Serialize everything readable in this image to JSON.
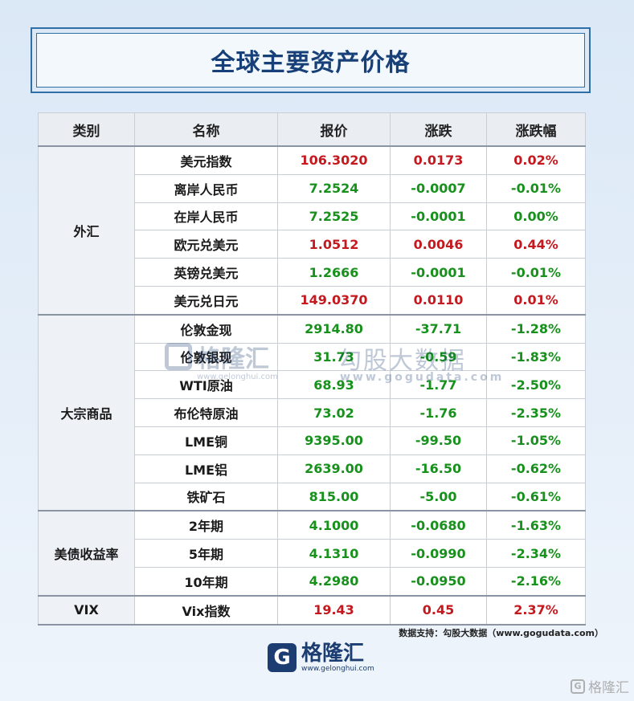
{
  "title": "全球主要资产价格",
  "headers": [
    "类别",
    "名称",
    "报价",
    "涨跌",
    "涨跌幅"
  ],
  "groups": [
    {
      "category": "外汇",
      "rows": [
        {
          "name": "美元指数",
          "price": "106.3020",
          "change": "0.0173",
          "pct": "0.02%",
          "dir": "up"
        },
        {
          "name": "离岸人民币",
          "price": "7.2524",
          "change": "-0.0007",
          "pct": "-0.01%",
          "dir": "down"
        },
        {
          "name": "在岸人民币",
          "price": "7.2525",
          "change": "-0.0001",
          "pct": "0.00%",
          "dir": "down"
        },
        {
          "name": "欧元兑美元",
          "price": "1.0512",
          "change": "0.0046",
          "pct": "0.44%",
          "dir": "up"
        },
        {
          "name": "英镑兑美元",
          "price": "1.2666",
          "change": "-0.0001",
          "pct": "-0.01%",
          "dir": "down"
        },
        {
          "name": "美元兑日元",
          "price": "149.0370",
          "change": "0.0110",
          "pct": "0.01%",
          "dir": "up"
        }
      ]
    },
    {
      "category": "大宗商品",
      "rows": [
        {
          "name": "伦敦金现",
          "price": "2914.80",
          "change": "-37.71",
          "pct": "-1.28%",
          "dir": "down"
        },
        {
          "name": "伦敦银现",
          "price": "31.73",
          "change": "-0.59",
          "pct": "-1.83%",
          "dir": "down"
        },
        {
          "name": "WTI原油",
          "price": "68.93",
          "change": "-1.77",
          "pct": "-2.50%",
          "dir": "down"
        },
        {
          "name": "布伦特原油",
          "price": "73.02",
          "change": "-1.76",
          "pct": "-2.35%",
          "dir": "down"
        },
        {
          "name": "LME铜",
          "price": "9395.00",
          "change": "-99.50",
          "pct": "-1.05%",
          "dir": "down"
        },
        {
          "name": "LME铝",
          "price": "2639.00",
          "change": "-16.50",
          "pct": "-0.62%",
          "dir": "down"
        },
        {
          "name": "铁矿石",
          "price": "815.00",
          "change": "-5.00",
          "pct": "-0.61%",
          "dir": "down"
        }
      ]
    },
    {
      "category": "美债收益率",
      "rows": [
        {
          "name": "2年期",
          "price": "4.1000",
          "change": "-0.0680",
          "pct": "-1.63%",
          "dir": "down"
        },
        {
          "name": "5年期",
          "price": "4.1310",
          "change": "-0.0990",
          "pct": "-2.34%",
          "dir": "down"
        },
        {
          "name": "10年期",
          "price": "4.2980",
          "change": "-0.0950",
          "pct": "-2.16%",
          "dir": "down"
        }
      ]
    },
    {
      "category": "VIX",
      "rows": [
        {
          "name": "Vix指数",
          "price": "19.43",
          "change": "0.45",
          "pct": "2.37%",
          "dir": "up"
        }
      ]
    }
  ],
  "watermark": {
    "brand": "格隆汇",
    "brand_url": "www.gelonghui.com",
    "data_brand": "勾股大数据",
    "data_url": "www.gogudata.com"
  },
  "source": "数据支持：勾股大数据（www.gogudata.com）",
  "logo": {
    "icon": "G",
    "name": "格隆汇",
    "url": "www.gelonghui.com"
  },
  "corner_watermark": {
    "icon": "G",
    "text": "格隆汇"
  },
  "colors": {
    "up": "#c3191f",
    "down": "#17911c",
    "title": "#173f78",
    "brand": "#1c3d72"
  }
}
